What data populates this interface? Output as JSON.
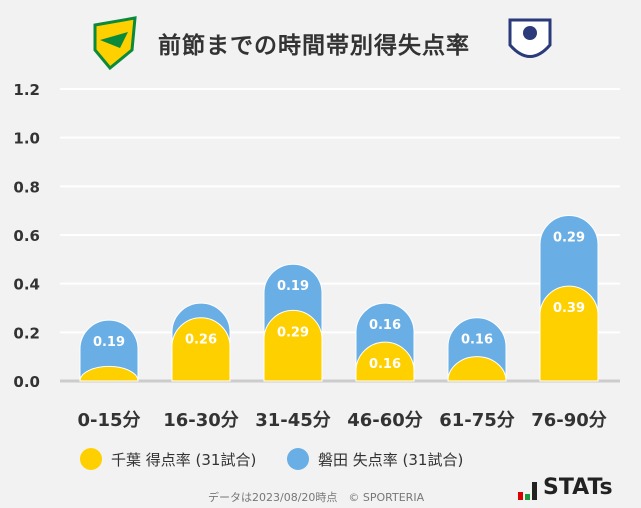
{
  "chart_data": {
    "type": "bar",
    "title": "前節までの時間帯別得失点率",
    "categories": [
      "0-15分",
      "16-30分",
      "31-45分",
      "46-60分",
      "61-75分",
      "76-90分"
    ],
    "series": [
      {
        "name": "千葉 得点率 (31試合)",
        "color": "#ffd000",
        "values": [
          0.06,
          0.26,
          0.29,
          0.16,
          0.1,
          0.39
        ],
        "labels": [
          "",
          "0.26",
          "0.29",
          "0.16",
          "",
          "0.39"
        ]
      },
      {
        "name": "磐田 失点率 (31試合)",
        "color": "#6aaee6",
        "values": [
          0.19,
          0.06,
          0.19,
          0.16,
          0.16,
          0.29
        ],
        "labels": [
          "0.19",
          "",
          "0.19",
          "0.16",
          "0.16",
          "0.29"
        ]
      }
    ],
    "yticks": [
      "0.0",
      "0.2",
      "0.4",
      "0.6",
      "0.8",
      "1.0",
      "1.2"
    ],
    "ylim": [
      0,
      1.2
    ],
    "grid": true,
    "legend_position": "bottom"
  },
  "footer": "データは2023/08/20時点　© SPORTERIA",
  "brand": "STATs"
}
